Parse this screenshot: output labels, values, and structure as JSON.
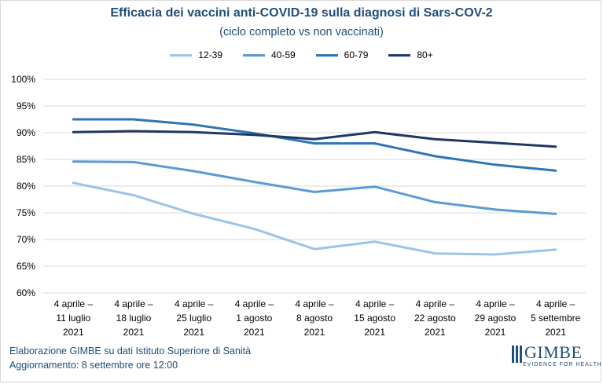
{
  "header": {
    "title": "Efficacia  dei vaccini anti-COVID-19 sulla diagnosi di Sars-COV-2",
    "subtitle": "(ciclo completo vs non vaccinati)"
  },
  "footer": {
    "line1": "Elaborazione GIMBE su dati Istituto Superiore di Sanità",
    "line2": "Aggiornamento: 8 settembre ore 12:00"
  },
  "logo": {
    "name": "GIMBE",
    "tagline": "EVIDENCE FOR HEALTH"
  },
  "chart_data": {
    "type": "line",
    "title": "Efficacia  dei vaccini anti-COVID-19 sulla diagnosi di Sars-COV-2",
    "subtitle": "(ciclo completo vs non vaccinati)",
    "categories": [
      [
        "4 aprile –",
        "11 luglio",
        "2021"
      ],
      [
        "4 aprile –",
        "18 luglio",
        "2021"
      ],
      [
        "4 aprile –",
        "25 luglio",
        "2021"
      ],
      [
        "4 aprile –",
        "1 agosto",
        "2021"
      ],
      [
        "4 aprile –",
        "8 agosto",
        "2021"
      ],
      [
        "4 aprile –",
        "15 agosto",
        "2021"
      ],
      [
        "4 aprile –",
        "22 agosto",
        "2021"
      ],
      [
        "4 aprile –",
        "29 agosto",
        "2021"
      ],
      [
        "4 aprile –",
        "5 settembre",
        "2021"
      ]
    ],
    "y_ticks": [
      "60%",
      "65%",
      "70%",
      "75%",
      "80%",
      "85%",
      "90%",
      "95%",
      "100%"
    ],
    "ylim": [
      60,
      100
    ],
    "grid": true,
    "legend_position": "top",
    "series": [
      {
        "name": "12-39",
        "color": "#9dc3e6",
        "values": [
          80.6,
          78.3,
          74.8,
          72.0,
          68.2,
          69.6,
          67.4,
          67.2,
          68.1
        ]
      },
      {
        "name": "40-59",
        "color": "#5b9bd5",
        "values": [
          84.6,
          84.5,
          82.8,
          80.8,
          78.9,
          79.9,
          77.0,
          75.6,
          74.8
        ]
      },
      {
        "name": "60-79",
        "color": "#2e75b6",
        "values": [
          92.5,
          92.5,
          91.5,
          89.9,
          88.0,
          88.0,
          85.6,
          84.0,
          82.9
        ]
      },
      {
        "name": "80+",
        "color": "#1f3864",
        "values": [
          90.1,
          90.3,
          90.1,
          89.6,
          88.8,
          90.1,
          88.8,
          88.1,
          87.4
        ]
      }
    ]
  }
}
